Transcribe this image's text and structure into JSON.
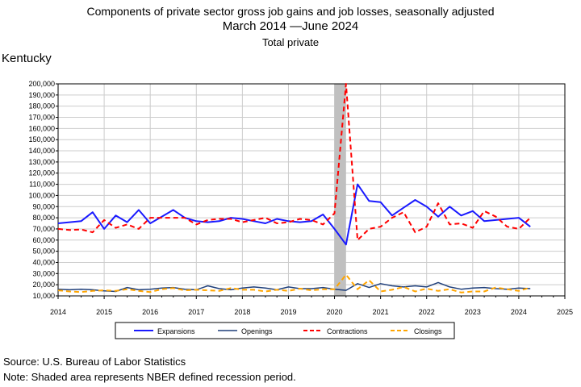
{
  "header": {
    "title_line1": "Components of private sector gross job gains and job losses, seasonally adjusted",
    "title_line2": "March 2014 —June 2024",
    "title_line3": "Total private",
    "region": "Kentucky"
  },
  "footer": {
    "source": "Source: U.S. Bureau of Labor Statistics",
    "note": "Note: Shaded area represents NBER defined recession period."
  },
  "colors": {
    "expansions": "#1a1aff",
    "openings": "#1f3f7a",
    "contractions": "#ff0000",
    "closings": "#ffa500",
    "recession": "#c0c0c0"
  },
  "chart_data": {
    "type": "line",
    "x_ticks": [
      "2014",
      "2015",
      "2016",
      "2017",
      "2018",
      "2019",
      "2020",
      "2021",
      "2022",
      "2023",
      "2024",
      "2025"
    ],
    "y_ticks": [
      "10,000",
      "20,000",
      "30,000",
      "40,000",
      "50,000",
      "60,000",
      "70,000",
      "80,000",
      "90,000",
      "100,000",
      "110,000",
      "120,000",
      "130,000",
      "140,000",
      "150,000",
      "160,000",
      "170,000",
      "180,000",
      "190,000",
      "200,000"
    ],
    "xlim": [
      2014.0,
      2025.0
    ],
    "ylim": [
      10000,
      200000
    ],
    "grid": true,
    "legend_position": "bottom",
    "recession": [
      2020.0,
      2020.25
    ],
    "x": [
      2014.0,
      2014.25,
      2014.5,
      2014.75,
      2015.0,
      2015.25,
      2015.5,
      2015.75,
      2016.0,
      2016.25,
      2016.5,
      2016.75,
      2017.0,
      2017.25,
      2017.5,
      2017.75,
      2018.0,
      2018.25,
      2018.5,
      2018.75,
      2019.0,
      2019.25,
      2019.5,
      2019.75,
      2020.0,
      2020.25,
      2020.5,
      2020.75,
      2021.0,
      2021.25,
      2021.5,
      2021.75,
      2022.0,
      2022.25,
      2022.5,
      2022.75,
      2023.0,
      2023.25,
      2023.5,
      2023.75,
      2024.0,
      2024.25
    ],
    "series": [
      {
        "name": "Expansions",
        "style": "solid",
        "width": 2,
        "values": [
          75000,
          76000,
          77000,
          85000,
          70000,
          82000,
          76000,
          87000,
          75000,
          81000,
          87000,
          80000,
          77000,
          76000,
          77000,
          80000,
          79000,
          77000,
          75000,
          79000,
          77000,
          76000,
          77000,
          83000,
          70000,
          56000,
          110000,
          95000,
          94000,
          82000,
          89000,
          96000,
          90000,
          81000,
          90000,
          82000,
          86000,
          77000,
          78000,
          79000,
          80000,
          72000
        ]
      },
      {
        "name": "Openings",
        "style": "solid",
        "width": 1.5,
        "values": [
          16000,
          15500,
          16000,
          15500,
          14500,
          14000,
          17500,
          15500,
          16000,
          17000,
          17500,
          16000,
          15500,
          19000,
          16500,
          15500,
          17000,
          18000,
          17000,
          15500,
          18000,
          16500,
          16500,
          17500,
          16000,
          15000,
          21000,
          17500,
          21000,
          19000,
          18000,
          19000,
          18000,
          22000,
          18000,
          16000,
          17000,
          17500,
          16500,
          16000,
          17000,
          16500
        ]
      },
      {
        "name": "Contractions",
        "style": "dash",
        "width": 2,
        "values": [
          70000,
          69000,
          69500,
          67000,
          78000,
          71000,
          74000,
          70000,
          80000,
          80000,
          80000,
          80000,
          74000,
          78000,
          79000,
          79000,
          76000,
          78000,
          80000,
          75000,
          76000,
          79000,
          78000,
          74000,
          84000,
          200000,
          60000,
          70000,
          72000,
          80000,
          85000,
          67000,
          72000,
          93000,
          74000,
          75000,
          71000,
          86000,
          81000,
          72000,
          70000,
          80000
        ]
      },
      {
        "name": "Closings",
        "style": "dash",
        "width": 2,
        "values": [
          15000,
          14000,
          13500,
          14500,
          15000,
          14500,
          16000,
          14500,
          13500,
          16000,
          17000,
          15000,
          15500,
          15000,
          14500,
          17000,
          15500,
          15500,
          14000,
          15500,
          14500,
          16500,
          15000,
          16000,
          16000,
          29000,
          16000,
          24000,
          14000,
          15500,
          18000,
          14000,
          16500,
          14500,
          16000,
          13000,
          14000,
          14000,
          17500,
          16000,
          14500,
          17500
        ]
      }
    ]
  }
}
